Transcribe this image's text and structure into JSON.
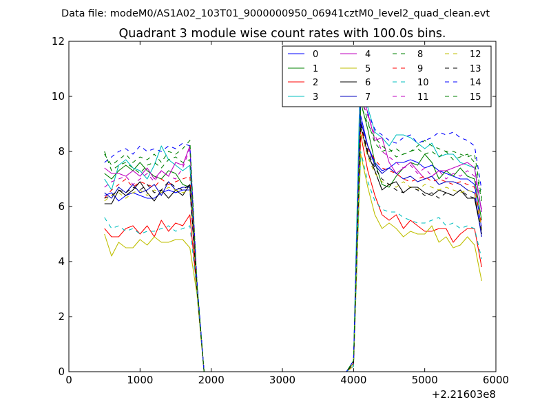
{
  "chart_data": {
    "type": "line",
    "suptitle": "Data file: modeM0/AS1A02_103T01_9000000950_06941cztM0_level2_quad_clean.evt",
    "title": "Quadrant 3 module wise count rates with 100.0s bins.",
    "xlabel": "",
    "ylabel": "",
    "xlim": [
      0,
      6000
    ],
    "ylim": [
      0,
      12
    ],
    "xticks": [
      "0",
      "1000",
      "2000",
      "3000",
      "4000",
      "5000",
      "6000"
    ],
    "yticks": [
      "0",
      "2",
      "4",
      "6",
      "8",
      "10",
      "12"
    ],
    "x_offset_label": "+2.21603e8",
    "legend_position": "top-right",
    "legend_columns": 4,
    "x": [
      500,
      600,
      700,
      800,
      900,
      1000,
      1100,
      1200,
      1300,
      1400,
      1500,
      1600,
      1700,
      1800,
      1900,
      2000,
      2100,
      2200,
      2300,
      2400,
      2500,
      2600,
      2700,
      2800,
      2900,
      3000,
      3100,
      3200,
      3300,
      3400,
      3500,
      3600,
      3700,
      3800,
      3900,
      4000,
      4100,
      4200,
      4300,
      4400,
      4500,
      4600,
      4700,
      4800,
      4900,
      5000,
      5100,
      5200,
      5300,
      5400,
      5500,
      5600,
      5700,
      5800
    ],
    "series": [
      {
        "name": "0",
        "color": "#0000ff",
        "dash": false,
        "values": [
          6.4,
          6.5,
          6.2,
          6.4,
          6.5,
          6.4,
          6.3,
          6.3,
          6.5,
          6.6,
          6.5,
          6.6,
          6.6,
          3.0,
          0,
          0,
          0,
          0,
          0,
          0,
          0,
          0,
          0,
          0,
          0,
          0,
          0,
          0,
          0,
          0,
          0,
          0,
          0,
          0,
          0,
          0.3,
          9.3,
          8.2,
          7.6,
          7.3,
          7.4,
          7.6,
          7.6,
          7.7,
          7.6,
          7.4,
          7.5,
          7.3,
          7.2,
          7.1,
          7.0,
          7.0,
          6.8,
          5.2
        ]
      },
      {
        "name": "1",
        "color": "#008000",
        "dash": false,
        "values": [
          7.2,
          7.0,
          7.3,
          7.5,
          7.3,
          7.6,
          7.3,
          7.1,
          7.0,
          7.3,
          7.2,
          6.8,
          6.7,
          3.0,
          0,
          0,
          0,
          0,
          0,
          0,
          0,
          0,
          0,
          0,
          0,
          0,
          0,
          0,
          0,
          0,
          0,
          0,
          0,
          0,
          0,
          0.3,
          9.8,
          8.8,
          7.6,
          6.8,
          6.7,
          7.1,
          7.4,
          7.6,
          7.5,
          7.9,
          7.6,
          7.0,
          7.3,
          7.1,
          7.4,
          7.1,
          7.0,
          5.5
        ]
      },
      {
        "name": "2",
        "color": "#ff0000",
        "dash": false,
        "values": [
          5.2,
          4.9,
          4.9,
          5.2,
          5.3,
          5.0,
          5.3,
          4.9,
          5.5,
          5.1,
          5.4,
          5.3,
          5.7,
          2.9,
          0,
          0,
          0,
          0,
          0,
          0,
          0,
          0,
          0,
          0,
          0,
          0,
          0,
          0,
          0,
          0,
          0,
          0,
          0,
          0,
          0,
          0.2,
          8.6,
          7.3,
          6.4,
          5.7,
          5.5,
          5.7,
          5.2,
          5.5,
          5.3,
          5.1,
          5.1,
          5.2,
          5.2,
          4.7,
          5.0,
          5.2,
          5.2,
          3.8
        ]
      },
      {
        "name": "3",
        "color": "#00bfbf",
        "dash": false,
        "values": [
          7.0,
          6.6,
          7.5,
          7.7,
          7.4,
          7.3,
          7.0,
          7.5,
          8.2,
          7.7,
          7.5,
          7.3,
          7.5,
          3.2,
          0,
          0,
          0,
          0,
          0,
          0,
          0,
          0,
          0,
          0,
          0,
          0,
          0,
          0,
          0,
          0,
          0,
          0,
          0,
          0,
          0,
          0.4,
          11.6,
          9.6,
          8.7,
          8.5,
          8.2,
          8.6,
          8.6,
          8.5,
          8.3,
          8.1,
          8.3,
          7.8,
          7.9,
          7.9,
          7.6,
          7.5,
          7.4,
          5.8
        ]
      },
      {
        "name": "4",
        "color": "#bf00bf",
        "dash": false,
        "values": [
          7.4,
          7.2,
          7.2,
          7.1,
          7.3,
          7.1,
          7.4,
          7.0,
          7.3,
          7.1,
          7.6,
          7.5,
          8.2,
          3.1,
          0,
          0,
          0,
          0,
          0,
          0,
          0,
          0,
          0,
          0,
          0,
          0,
          0,
          0,
          0,
          0,
          0,
          0,
          0,
          0,
          0,
          0.3,
          10.3,
          9.4,
          8.4,
          8.5,
          7.6,
          7.2,
          7.4,
          7.6,
          7.3,
          7.0,
          7.1,
          7.3,
          7.3,
          7.4,
          7.5,
          7.6,
          7.4,
          5.8
        ]
      },
      {
        "name": "5",
        "color": "#bfbf00",
        "dash": false,
        "values": [
          5.0,
          4.2,
          4.7,
          4.5,
          4.5,
          4.8,
          4.6,
          4.9,
          4.7,
          4.7,
          4.8,
          4.8,
          4.5,
          2.8,
          0,
          0,
          0,
          0,
          0,
          0,
          0,
          0,
          0,
          0,
          0,
          0,
          0,
          0,
          0,
          0,
          0,
          0,
          0,
          0,
          0,
          0.2,
          7.9,
          6.7,
          5.7,
          5.2,
          5.4,
          5.2,
          4.9,
          5.1,
          5.0,
          5.0,
          5.3,
          4.7,
          4.9,
          4.5,
          4.6,
          4.9,
          4.6,
          3.3
        ]
      },
      {
        "name": "6",
        "color": "#000000",
        "dash": false,
        "values": [
          6.1,
          6.1,
          6.6,
          6.4,
          6.6,
          6.9,
          6.5,
          6.2,
          6.6,
          6.3,
          6.6,
          6.4,
          6.8,
          3.0,
          0,
          0,
          0,
          0,
          0,
          0,
          0,
          0,
          0,
          0,
          0,
          0,
          0,
          0,
          0,
          0,
          0,
          0,
          0,
          0,
          0,
          0.3,
          8.9,
          7.9,
          7.3,
          6.6,
          6.8,
          6.9,
          6.5,
          6.7,
          6.7,
          6.5,
          6.4,
          6.6,
          6.5,
          6.4,
          6.6,
          6.3,
          6.3,
          5.0
        ]
      },
      {
        "name": "7",
        "color": "#0000bf",
        "dash": false,
        "values": [
          6.5,
          6.3,
          6.7,
          6.5,
          6.8,
          6.5,
          6.6,
          6.8,
          6.4,
          6.9,
          6.6,
          6.7,
          6.7,
          3.1,
          0,
          0,
          0,
          0,
          0,
          0,
          0,
          0,
          0,
          0,
          0,
          0,
          0,
          0,
          0,
          0,
          0,
          0,
          0,
          0,
          0,
          0.3,
          9.1,
          8.2,
          7.5,
          7.2,
          7.4,
          7.2,
          7.0,
          7.1,
          6.9,
          7.0,
          7.1,
          6.8,
          6.9,
          6.9,
          6.8,
          6.6,
          6.5,
          4.9
        ]
      },
      {
        "name": "8",
        "color": "#008000",
        "dash": true,
        "values": [
          8.0,
          7.3,
          7.5,
          7.6,
          7.4,
          7.2,
          7.5,
          7.6,
          7.4,
          7.7,
          7.8,
          7.6,
          7.7,
          3.2,
          0,
          0,
          0,
          0,
          0,
          0,
          0,
          0,
          0,
          0,
          0,
          0,
          0,
          0,
          0,
          0,
          0,
          0,
          0,
          0,
          0,
          0.4,
          10.0,
          9.1,
          8.3,
          8.0,
          8.1,
          7.8,
          7.9,
          8.0,
          8.2,
          8.4,
          8.2,
          8.1,
          8.0,
          8.0,
          7.9,
          7.8,
          7.9,
          6.3
        ]
      },
      {
        "name": "9",
        "color": "#ff0000",
        "dash": true,
        "values": [
          6.3,
          6.6,
          6.8,
          7.0,
          6.7,
          6.9,
          6.8,
          6.7,
          7.0,
          6.8,
          6.9,
          7.0,
          7.1,
          3.0,
          0,
          0,
          0,
          0,
          0,
          0,
          0,
          0,
          0,
          0,
          0,
          0,
          0,
          0,
          0,
          0,
          0,
          0,
          0,
          0,
          0,
          0.3,
          8.8,
          8.1,
          7.7,
          7.4,
          7.3,
          7.2,
          7.0,
          6.9,
          7.0,
          7.1,
          6.9,
          7.0,
          6.9,
          6.8,
          6.9,
          6.8,
          6.7,
          5.3
        ]
      },
      {
        "name": "10",
        "color": "#00bfbf",
        "dash": true,
        "values": [
          5.6,
          5.2,
          5.3,
          5.1,
          5.2,
          5.0,
          5.1,
          5.1,
          5.2,
          5.3,
          5.1,
          5.2,
          5.3,
          2.9,
          0,
          0,
          0,
          0,
          0,
          0,
          0,
          0,
          0,
          0,
          0,
          0,
          0,
          0,
          0,
          0,
          0,
          0,
          0,
          0,
          0,
          0.2,
          8.0,
          6.9,
          6.2,
          5.9,
          5.8,
          5.8,
          5.6,
          5.5,
          5.4,
          5.4,
          5.5,
          5.6,
          5.3,
          5.4,
          5.2,
          5.3,
          5.2,
          4.1
        ]
      },
      {
        "name": "11",
        "color": "#bf00bf",
        "dash": true,
        "values": [
          6.7,
          6.9,
          7.0,
          7.1,
          6.8,
          7.0,
          7.2,
          6.9,
          7.3,
          7.1,
          7.0,
          7.4,
          8.1,
          3.1,
          0,
          0,
          0,
          0,
          0,
          0,
          0,
          0,
          0,
          0,
          0,
          0,
          0,
          0,
          0,
          0,
          0,
          0,
          0,
          0,
          0,
          0.3,
          9.9,
          9.3,
          8.6,
          8.0,
          7.8,
          7.6,
          7.4,
          7.5,
          7.2,
          7.4,
          7.1,
          7.3,
          7.0,
          7.2,
          7.1,
          7.3,
          7.1,
          5.9
        ]
      },
      {
        "name": "12",
        "color": "#bfbf00",
        "dash": true,
        "values": [
          6.2,
          6.4,
          6.5,
          6.3,
          6.5,
          6.6,
          6.4,
          6.6,
          6.5,
          6.7,
          6.6,
          6.5,
          6.6,
          3.0,
          0,
          0,
          0,
          0,
          0,
          0,
          0,
          0,
          0,
          0,
          0,
          0,
          0,
          0,
          0,
          0,
          0,
          0,
          0,
          0,
          0,
          0.3,
          8.7,
          7.8,
          7.2,
          6.9,
          6.8,
          6.7,
          6.9,
          6.7,
          6.6,
          6.8,
          6.7,
          6.6,
          6.7,
          6.6,
          6.5,
          6.6,
          6.5,
          5.2
        ]
      },
      {
        "name": "13",
        "color": "#000000",
        "dash": true,
        "values": [
          6.3,
          6.4,
          6.6,
          6.5,
          6.7,
          6.6,
          6.8,
          6.5,
          6.6,
          6.9,
          6.7,
          6.6,
          6.8,
          3.0,
          0,
          0,
          0,
          0,
          0,
          0,
          0,
          0,
          0,
          0,
          0,
          0,
          0,
          0,
          0,
          0,
          0,
          0,
          0,
          0,
          0,
          0.3,
          9.0,
          8.0,
          7.4,
          7.0,
          6.8,
          6.6,
          6.5,
          6.7,
          6.6,
          6.4,
          6.5,
          6.3,
          6.5,
          6.4,
          6.6,
          6.4,
          6.3,
          5.1
        ]
      },
      {
        "name": "14",
        "color": "#0000ff",
        "dash": true,
        "values": [
          7.6,
          7.8,
          8.0,
          8.1,
          7.9,
          8.2,
          8.0,
          8.1,
          8.0,
          8.2,
          8.1,
          8.3,
          8.2,
          3.3,
          0,
          0,
          0,
          0,
          0,
          0,
          0,
          0,
          0,
          0,
          0,
          0,
          0,
          0,
          0,
          0,
          0,
          0,
          0,
          0,
          0,
          0.4,
          10.2,
          9.4,
          8.8,
          8.6,
          8.4,
          8.3,
          8.5,
          8.6,
          8.3,
          8.4,
          8.5,
          8.7,
          8.6,
          8.7,
          8.5,
          8.4,
          8.2,
          6.6
        ]
      },
      {
        "name": "15",
        "color": "#008000",
        "dash": true,
        "values": [
          7.9,
          7.5,
          7.7,
          7.9,
          7.6,
          7.8,
          7.7,
          7.9,
          7.6,
          8.0,
          7.9,
          8.1,
          8.4,
          3.2,
          0,
          0,
          0,
          0,
          0,
          0,
          0,
          0,
          0,
          0,
          0,
          0,
          0,
          0,
          0,
          0,
          0,
          0,
          0,
          0,
          0,
          0.4,
          9.7,
          9.0,
          8.5,
          8.2,
          8.0,
          8.1,
          7.9,
          8.0,
          8.1,
          7.9,
          8.0,
          7.8,
          8.0,
          7.7,
          7.8,
          7.9,
          7.6,
          6.2
        ]
      }
    ]
  }
}
